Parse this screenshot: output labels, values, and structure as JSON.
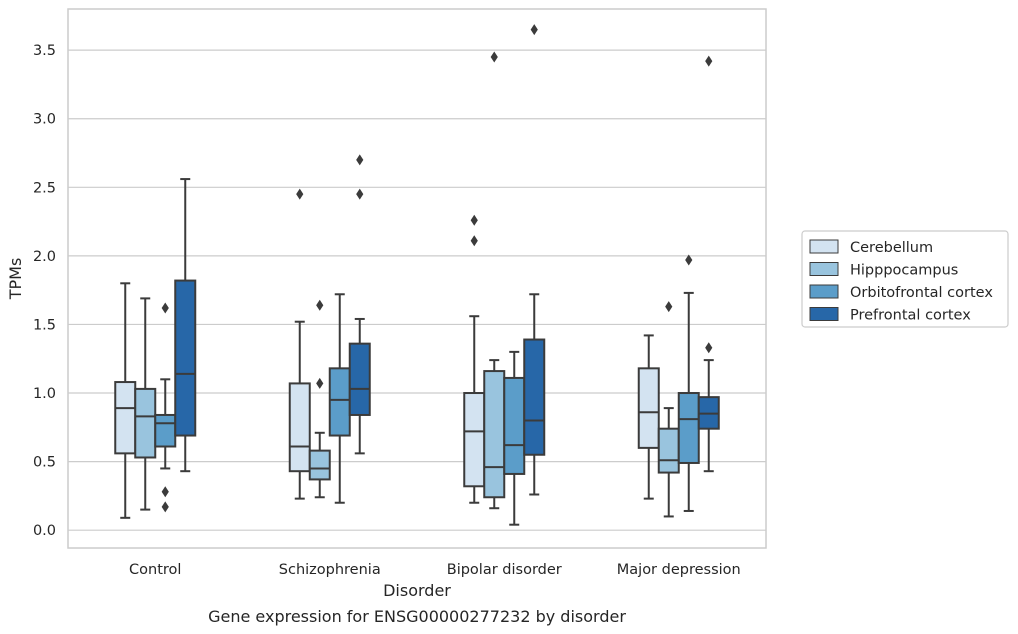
{
  "chart_data": {
    "type": "box",
    "xlabel": "Disorder",
    "ylabel": "TPMs",
    "caption": "Gene expression for ENSG00000277232 by disorder",
    "ylim": [
      -0.13,
      3.8
    ],
    "yticks": [
      "0.0",
      "0.5",
      "1.0",
      "1.5",
      "2.0",
      "2.5",
      "3.0",
      "3.5"
    ],
    "grid": "horizontal",
    "legend_position": "right",
    "categories": [
      "Control",
      "Schizophrenia",
      "Bipolar disorder",
      "Major depression"
    ],
    "series": [
      {
        "name": "Cerebellum",
        "color": "#d3e3f1",
        "boxes": [
          {
            "whislo": 0.09,
            "q1": 0.56,
            "med": 0.89,
            "q3": 1.08,
            "whishi": 1.8,
            "fliers": []
          },
          {
            "whislo": 0.23,
            "q1": 0.43,
            "med": 0.61,
            "q3": 1.07,
            "whishi": 1.52,
            "fliers": [
              2.45
            ]
          },
          {
            "whislo": 0.2,
            "q1": 0.32,
            "med": 0.72,
            "q3": 1.0,
            "whishi": 1.56,
            "fliers": [
              2.11,
              2.26
            ]
          },
          {
            "whislo": 0.23,
            "q1": 0.6,
            "med": 0.86,
            "q3": 1.18,
            "whishi": 1.42,
            "fliers": []
          }
        ]
      },
      {
        "name": "Hipppocampus",
        "color": "#99c4de",
        "boxes": [
          {
            "whislo": 0.15,
            "q1": 0.53,
            "med": 0.83,
            "q3": 1.03,
            "whishi": 1.69,
            "fliers": []
          },
          {
            "whislo": 0.24,
            "q1": 0.37,
            "med": 0.45,
            "q3": 0.58,
            "whishi": 0.71,
            "fliers": [
              1.07,
              1.64
            ]
          },
          {
            "whislo": 0.16,
            "q1": 0.24,
            "med": 0.46,
            "q3": 1.16,
            "whishi": 1.24,
            "fliers": [
              3.45
            ]
          },
          {
            "whislo": 0.1,
            "q1": 0.42,
            "med": 0.51,
            "q3": 0.74,
            "whishi": 0.89,
            "fliers": [
              1.63
            ]
          }
        ]
      },
      {
        "name": "Orbitofrontal cortex",
        "color": "#5b9dc9",
        "boxes": [
          {
            "whislo": 0.45,
            "q1": 0.61,
            "med": 0.78,
            "q3": 0.84,
            "whishi": 1.1,
            "fliers": [
              0.17,
              0.28,
              1.62
            ]
          },
          {
            "whislo": 0.2,
            "q1": 0.69,
            "med": 0.95,
            "q3": 1.18,
            "whishi": 1.72,
            "fliers": []
          },
          {
            "whislo": 0.04,
            "q1": 0.41,
            "med": 0.62,
            "q3": 1.11,
            "whishi": 1.3,
            "fliers": []
          },
          {
            "whislo": 0.14,
            "q1": 0.49,
            "med": 0.81,
            "q3": 1.0,
            "whishi": 1.73,
            "fliers": [
              1.97
            ]
          }
        ]
      },
      {
        "name": "Prefrontal cortex",
        "color": "#2767a8",
        "boxes": [
          {
            "whislo": 0.43,
            "q1": 0.69,
            "med": 1.14,
            "q3": 1.82,
            "whishi": 2.56,
            "fliers": []
          },
          {
            "whislo": 0.56,
            "q1": 0.84,
            "med": 1.03,
            "q3": 1.36,
            "whishi": 1.54,
            "fliers": [
              2.45,
              2.7
            ]
          },
          {
            "whislo": 0.26,
            "q1": 0.55,
            "med": 0.8,
            "q3": 1.39,
            "whishi": 1.72,
            "fliers": [
              3.65
            ]
          },
          {
            "whislo": 0.43,
            "q1": 0.74,
            "med": 0.85,
            "q3": 0.97,
            "whishi": 1.24,
            "fliers": [
              1.33,
              3.42
            ]
          }
        ]
      }
    ]
  }
}
